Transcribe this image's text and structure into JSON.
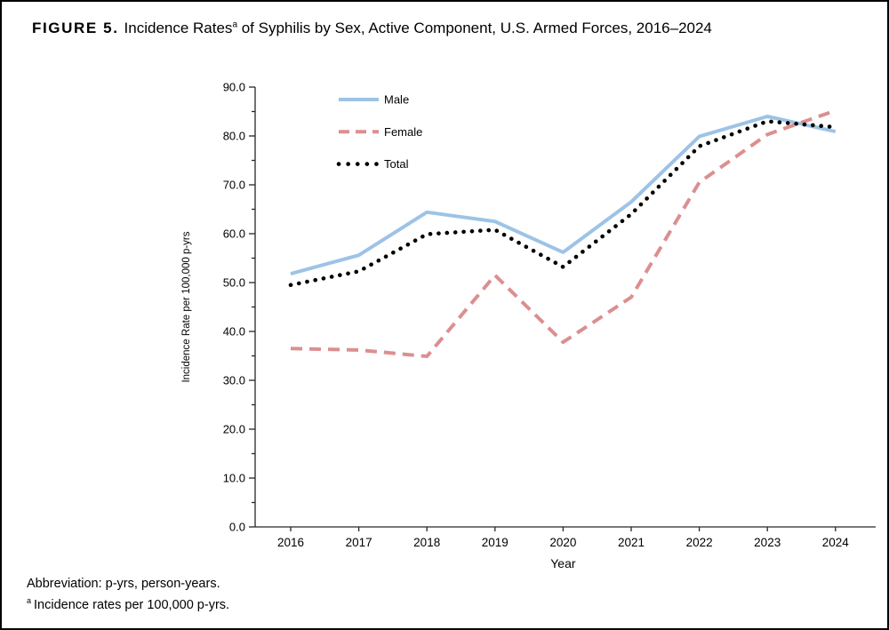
{
  "figure": {
    "label": "FIGURE 5.",
    "title_a": "Incidence Rates",
    "title_sup": "a",
    "title_b": " of Syphilis by Sex, Active Component, U.S. Armed Forces, 2016–2024"
  },
  "footnotes": {
    "abbreviation": "Abbreviation: p-yrs, person-years.",
    "note_sup": "a",
    "note": "Incidence rates per 100,000 p-yrs."
  },
  "chart_data": {
    "type": "line",
    "x": [
      "2016",
      "2017",
      "2018",
      "2019",
      "2020",
      "2021",
      "2022",
      "2023",
      "2024"
    ],
    "series": [
      {
        "name": "Male",
        "style": "solid",
        "color": "#9DC3E6",
        "values": [
          51.8,
          55.6,
          64.4,
          62.5,
          56.2,
          66.5,
          79.9,
          84.0,
          80.9
        ]
      },
      {
        "name": "Female",
        "style": "dashed",
        "color": "#DC8F8F",
        "values": [
          36.5,
          36.2,
          34.9,
          51.5,
          37.8,
          47.0,
          70.5,
          80.3,
          85.2
        ]
      },
      {
        "name": "Total",
        "style": "dotted",
        "color": "#000000",
        "values": [
          49.5,
          52.3,
          59.9,
          60.8,
          53.2,
          64.0,
          77.9,
          83.0,
          81.8
        ]
      }
    ],
    "xlabel": "Year",
    "ylabel": "Incidence Rate per 100,000 p-yrs",
    "ylim": [
      0,
      90
    ],
    "ytick_major_step": 10,
    "ytick_minor_step": 5,
    "ytick_decimals": 1,
    "grid": false,
    "legend_position": "top-left-inside",
    "axis_color": "#262626"
  }
}
